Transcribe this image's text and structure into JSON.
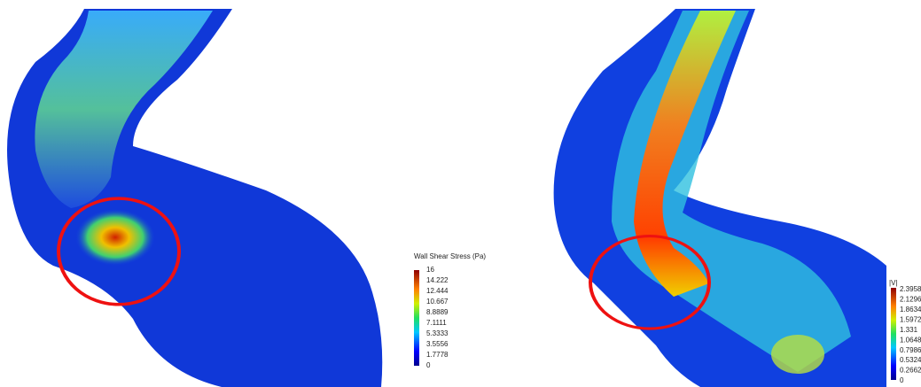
{
  "panels": [
    {
      "colorbar": {
        "title": "Wall Shear Stress (Pa)",
        "ticks": [
          "16",
          "14.222",
          "12.444",
          "10.667",
          "8.8889",
          "7.1111",
          "5.3333",
          "3.5556",
          "1.7778",
          "0"
        ]
      }
    },
    {
      "colorbar": {
        "title": "|V|",
        "ticks": [
          "2.3958",
          "2.1296",
          "1.8634",
          "1.5972",
          "1.331",
          "1.0648",
          "0.7986",
          "0.5324",
          "0.2662",
          "0"
        ]
      }
    }
  ]
}
